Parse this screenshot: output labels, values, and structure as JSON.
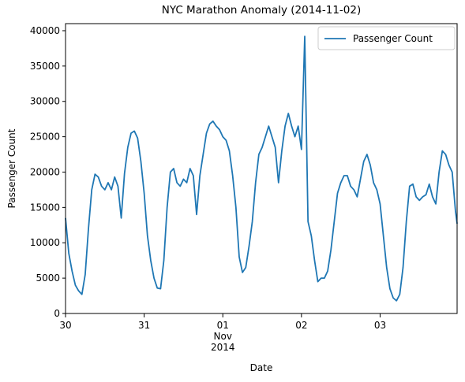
{
  "chart_data": {
    "type": "line",
    "title": "NYC Marathon Anomaly (2014-11-02)",
    "xlabel": "Date",
    "ylabel": "Passenger Count",
    "x": [
      "2014-10-30 00:00",
      "2014-10-30 01:00",
      "2014-10-30 02:00",
      "2014-10-30 03:00",
      "2014-10-30 04:00",
      "2014-10-30 05:00",
      "2014-10-30 06:00",
      "2014-10-30 07:00",
      "2014-10-30 08:00",
      "2014-10-30 09:00",
      "2014-10-30 10:00",
      "2014-10-30 11:00",
      "2014-10-30 12:00",
      "2014-10-30 13:00",
      "2014-10-30 14:00",
      "2014-10-30 15:00",
      "2014-10-30 16:00",
      "2014-10-30 17:00",
      "2014-10-30 18:00",
      "2014-10-30 19:00",
      "2014-10-30 20:00",
      "2014-10-30 21:00",
      "2014-10-30 22:00",
      "2014-10-30 23:00",
      "2014-10-31 00:00",
      "2014-10-31 01:00",
      "2014-10-31 02:00",
      "2014-10-31 03:00",
      "2014-10-31 04:00",
      "2014-10-31 05:00",
      "2014-10-31 06:00",
      "2014-10-31 07:00",
      "2014-10-31 08:00",
      "2014-10-31 09:00",
      "2014-10-31 10:00",
      "2014-10-31 11:00",
      "2014-10-31 12:00",
      "2014-10-31 13:00",
      "2014-10-31 14:00",
      "2014-10-31 15:00",
      "2014-10-31 16:00",
      "2014-10-31 17:00",
      "2014-10-31 18:00",
      "2014-10-31 19:00",
      "2014-10-31 20:00",
      "2014-10-31 21:00",
      "2014-10-31 22:00",
      "2014-10-31 23:00",
      "2014-11-01 00:00",
      "2014-11-01 01:00",
      "2014-11-01 02:00",
      "2014-11-01 03:00",
      "2014-11-01 04:00",
      "2014-11-01 05:00",
      "2014-11-01 06:00",
      "2014-11-01 07:00",
      "2014-11-01 08:00",
      "2014-11-01 09:00",
      "2014-11-01 10:00",
      "2014-11-01 11:00",
      "2014-11-01 12:00",
      "2014-11-01 13:00",
      "2014-11-01 14:00",
      "2014-11-01 15:00",
      "2014-11-01 16:00",
      "2014-11-01 17:00",
      "2014-11-01 18:00",
      "2014-11-01 19:00",
      "2014-11-01 20:00",
      "2014-11-01 21:00",
      "2014-11-01 22:00",
      "2014-11-01 23:00",
      "2014-11-02 00:00",
      "2014-11-02 01:00",
      "2014-11-02 02:00",
      "2014-11-02 03:00",
      "2014-11-02 04:00",
      "2014-11-02 05:00",
      "2014-11-02 06:00",
      "2014-11-02 07:00",
      "2014-11-02 08:00",
      "2014-11-02 09:00",
      "2014-11-02 10:00",
      "2014-11-02 11:00",
      "2014-11-02 12:00",
      "2014-11-02 13:00",
      "2014-11-02 14:00",
      "2014-11-02 15:00",
      "2014-11-02 16:00",
      "2014-11-02 17:00",
      "2014-11-02 18:00",
      "2014-11-02 19:00",
      "2014-11-02 20:00",
      "2014-11-02 21:00",
      "2014-11-02 22:00",
      "2014-11-02 23:00",
      "2014-11-03 00:00",
      "2014-11-03 01:00",
      "2014-11-03 02:00",
      "2014-11-03 03:00",
      "2014-11-03 04:00",
      "2014-11-03 05:00",
      "2014-11-03 06:00",
      "2014-11-03 07:00",
      "2014-11-03 08:00",
      "2014-11-03 09:00",
      "2014-11-03 10:00",
      "2014-11-03 11:00",
      "2014-11-03 12:00",
      "2014-11-03 13:00",
      "2014-11-03 14:00",
      "2014-11-03 15:00",
      "2014-11-03 16:00",
      "2014-11-03 17:00",
      "2014-11-03 18:00",
      "2014-11-03 19:00",
      "2014-11-03 20:00",
      "2014-11-03 21:00",
      "2014-11-03 22:00",
      "2014-11-03 23:00",
      "2014-11-03 23:30"
    ],
    "series": [
      {
        "name": "Passenger Count",
        "color": "#1f77b4",
        "values": [
          13500,
          8500,
          6000,
          4000,
          3200,
          2700,
          5500,
          12000,
          17500,
          19700,
          19300,
          18000,
          17500,
          18500,
          17500,
          19300,
          18000,
          13500,
          19800,
          23500,
          25500,
          25800,
          24800,
          21500,
          17000,
          11000,
          7500,
          5000,
          3600,
          3500,
          7500,
          15000,
          20000,
          20500,
          18500,
          18000,
          19000,
          18500,
          20500,
          19500,
          14000,
          19500,
          22500,
          25500,
          26800,
          27200,
          26500,
          26000,
          25000,
          24500,
          23000,
          19500,
          15000,
          8000,
          5800,
          6500,
          9500,
          13000,
          18500,
          22500,
          23500,
          25000,
          26500,
          25000,
          23500,
          18500,
          23000,
          26500,
          28300,
          26500,
          25000,
          26500,
          23200,
          39200,
          13000,
          11000,
          7500,
          4500,
          5000,
          5000,
          6000,
          9000,
          13000,
          17000,
          18500,
          19500,
          19500,
          18000,
          17500,
          16500,
          19000,
          21500,
          22500,
          21000,
          18500,
          17500,
          15500,
          11000,
          6500,
          3500,
          2200,
          1800,
          2700,
          6500,
          13000,
          18000,
          18300,
          16500,
          16000,
          16500,
          16800,
          18300,
          16500,
          15500,
          20000,
          23000,
          22500,
          21000,
          20000,
          14500,
          12700
        ]
      }
    ],
    "xlim": [
      "2014-10-30 00:00",
      "2014-11-03 23:30"
    ],
    "xticks": [
      {
        "value": "2014-10-30 00:00",
        "label": "30"
      },
      {
        "value": "2014-10-31 00:00",
        "label": "31"
      },
      {
        "value": "2014-11-01 00:00",
        "label": "01\nNov\n2014"
      },
      {
        "value": "2014-11-02 00:00",
        "label": "02"
      },
      {
        "value": "2014-11-03 00:00",
        "label": "03"
      }
    ],
    "ylim": [
      0,
      41000
    ],
    "yticks": [
      0,
      5000,
      10000,
      15000,
      20000,
      25000,
      30000,
      35000,
      40000
    ],
    "grid": false,
    "legend": "upper right"
  }
}
